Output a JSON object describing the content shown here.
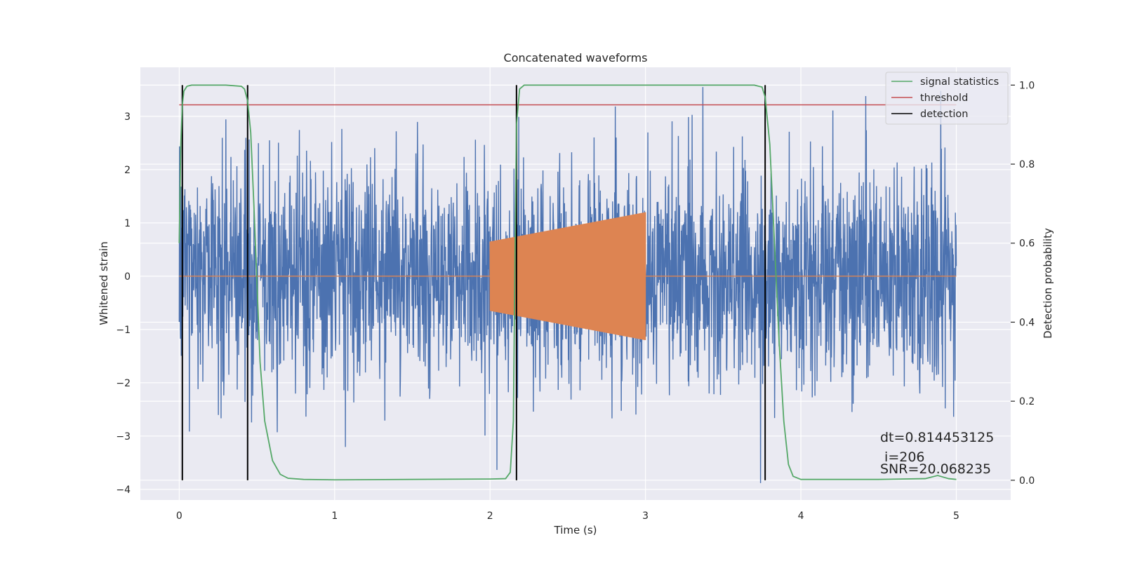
{
  "chart_data": {
    "type": "line",
    "title": "Concatenated waveforms",
    "xlabel": "Time (s)",
    "ylabel": "Whitened strain",
    "y2label": "Detection probability",
    "xlim": [
      -0.25,
      5.35
    ],
    "ylim": [
      -4.2,
      3.92
    ],
    "y2lim": [
      -0.05,
      1.045
    ],
    "xticks": [
      0,
      1,
      2,
      3,
      4,
      5
    ],
    "xtick_labels": [
      "0",
      "1",
      "2",
      "3",
      "4",
      "5"
    ],
    "yticks": [
      -4,
      -3,
      -2,
      -1,
      0,
      1,
      2,
      3
    ],
    "ytick_labels": [
      "−4",
      "−3",
      "−2",
      "−1",
      "0",
      "1",
      "2",
      "3"
    ],
    "y2ticks": [
      0.0,
      0.2,
      0.4,
      0.6,
      0.8,
      1.0
    ],
    "y2tick_labels": [
      "0.0",
      "0.2",
      "0.4",
      "0.6",
      "0.8",
      "1.0"
    ],
    "grid": true,
    "legend_position": "top-right",
    "legend": [
      {
        "label": "signal statistics",
        "color": "#55a868"
      },
      {
        "label": "threshold",
        "color": "#c44e52"
      },
      {
        "label": "detection",
        "color": "#000000"
      }
    ],
    "series": [
      {
        "name": "strain",
        "axis": "left",
        "color": "#4c72b0",
        "kind": "noise",
        "x_range": [
          0,
          5
        ],
        "envelope": 1.0
      },
      {
        "name": "waveform",
        "axis": "left",
        "color": "#dd8452",
        "kind": "chirp",
        "x_range": [
          2.0,
          3.0
        ],
        "amp_start": 0.65,
        "amp_end": 1.2
      },
      {
        "name": "signal statistics",
        "axis": "right",
        "color": "#55a868",
        "x": [
          0.0,
          0.01,
          0.02,
          0.03,
          0.05,
          0.08,
          0.12,
          0.2,
          0.3,
          0.4,
          0.42,
          0.44,
          0.46,
          0.48,
          0.5,
          0.52,
          0.55,
          0.6,
          0.65,
          0.7,
          0.8,
          1.0,
          1.5,
          2.0,
          2.1,
          2.13,
          2.15,
          2.16,
          2.17,
          2.19,
          2.22,
          2.3,
          2.5,
          3.0,
          3.5,
          3.7,
          3.75,
          3.77,
          3.8,
          3.83,
          3.86,
          3.89,
          3.92,
          3.95,
          4.0,
          4.2,
          4.5,
          4.8,
          4.88,
          4.95,
          5.0
        ],
        "y": [
          0.6,
          0.85,
          0.95,
          0.985,
          0.997,
          1.0,
          1.0,
          1.0,
          1.0,
          0.997,
          0.99,
          0.96,
          0.88,
          0.7,
          0.5,
          0.3,
          0.15,
          0.05,
          0.015,
          0.005,
          0.002,
          0.001,
          0.002,
          0.003,
          0.004,
          0.02,
          0.15,
          0.55,
          0.9,
          0.99,
          1.0,
          1.0,
          1.0,
          1.0,
          1.0,
          1.0,
          0.995,
          0.97,
          0.85,
          0.6,
          0.35,
          0.15,
          0.04,
          0.01,
          0.002,
          0.002,
          0.002,
          0.004,
          0.012,
          0.004,
          0.002
        ]
      },
      {
        "name": "threshold",
        "axis": "right",
        "color": "#c44e52",
        "x": [
          0,
          5
        ],
        "y": [
          0.95,
          0.95
        ]
      }
    ],
    "detections": [
      0.02,
      0.44,
      2.17,
      3.77
    ],
    "detection_range": [
      0.0,
      1.0
    ],
    "annotations": {
      "dt": "dt=0.814453125",
      "i": " i=206",
      "snr": "SNR=20.068235"
    }
  }
}
